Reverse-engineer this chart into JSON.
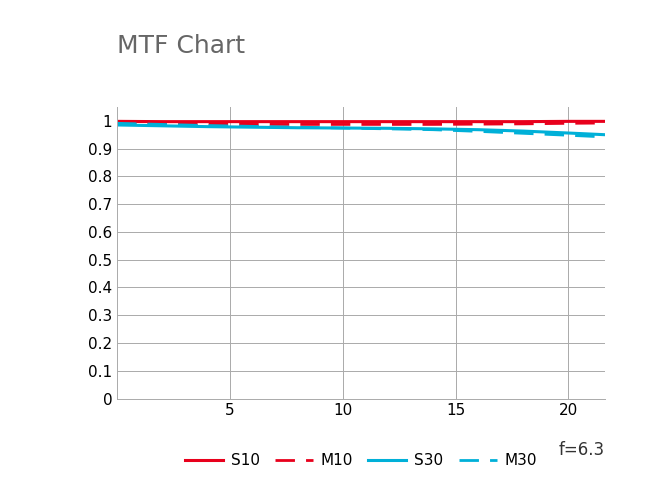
{
  "title": "MTF Chart",
  "title_fontsize": 18,
  "title_color": "#666666",
  "xlim": [
    0,
    21.6
  ],
  "ylim": [
    0,
    1.05
  ],
  "yticks": [
    0,
    0.1,
    0.2,
    0.3,
    0.4,
    0.5,
    0.6,
    0.7,
    0.8,
    0.9,
    1
  ],
  "ytick_labels": [
    "0",
    "0.1",
    "0.2",
    "0.3",
    "0.4",
    "0.5",
    "0.6",
    "0.7",
    "0.8",
    "0.9",
    "1"
  ],
  "xticks": [
    5,
    10,
    15,
    20
  ],
  "xtick_labels": [
    "5",
    "10",
    "15",
    "20"
  ],
  "annotation": "f=6.3",
  "background_color": "#ffffff",
  "grid_color": "#aaaaaa",
  "series": {
    "S10": {
      "x": [
        0,
        2,
        4,
        6,
        8,
        10,
        12,
        14,
        16,
        18,
        20,
        21.6
      ],
      "y": [
        0.998,
        0.997,
        0.997,
        0.997,
        0.997,
        0.997,
        0.997,
        0.997,
        0.997,
        0.997,
        0.998,
        0.998
      ],
      "color": "#e8001c",
      "linestyle": "solid",
      "linewidth": 2.2,
      "label": "S10"
    },
    "M10": {
      "x": [
        0,
        2,
        4,
        6,
        8,
        10,
        12,
        14,
        16,
        18,
        20,
        21.6
      ],
      "y": [
        0.993,
        0.99,
        0.988,
        0.987,
        0.987,
        0.987,
        0.987,
        0.987,
        0.988,
        0.989,
        0.991,
        0.992
      ],
      "color": "#e8001c",
      "linestyle": "dashed",
      "linewidth": 2.0,
      "label": "M10"
    },
    "S30": {
      "x": [
        0,
        2,
        4,
        6,
        8,
        10,
        12,
        14,
        16,
        18,
        20,
        21.6
      ],
      "y": [
        0.985,
        0.982,
        0.979,
        0.977,
        0.975,
        0.974,
        0.973,
        0.971,
        0.968,
        0.963,
        0.956,
        0.95
      ],
      "color": "#00b0d8",
      "linestyle": "solid",
      "linewidth": 2.2,
      "label": "S30"
    },
    "M30": {
      "x": [
        0,
        2,
        4,
        6,
        8,
        10,
        12,
        14,
        16,
        18,
        20,
        21.6
      ],
      "y": [
        0.991,
        0.987,
        0.983,
        0.98,
        0.977,
        0.974,
        0.971,
        0.968,
        0.962,
        0.955,
        0.948,
        0.942
      ],
      "color": "#00b0d8",
      "linestyle": "dashed",
      "linewidth": 2.0,
      "label": "M30"
    }
  },
  "legend_order": [
    "S10",
    "M10",
    "S30",
    "M30"
  ],
  "legend_fontsize": 11,
  "tick_fontsize": 11,
  "figsize": [
    6.5,
    4.86
  ],
  "dpi": 100
}
